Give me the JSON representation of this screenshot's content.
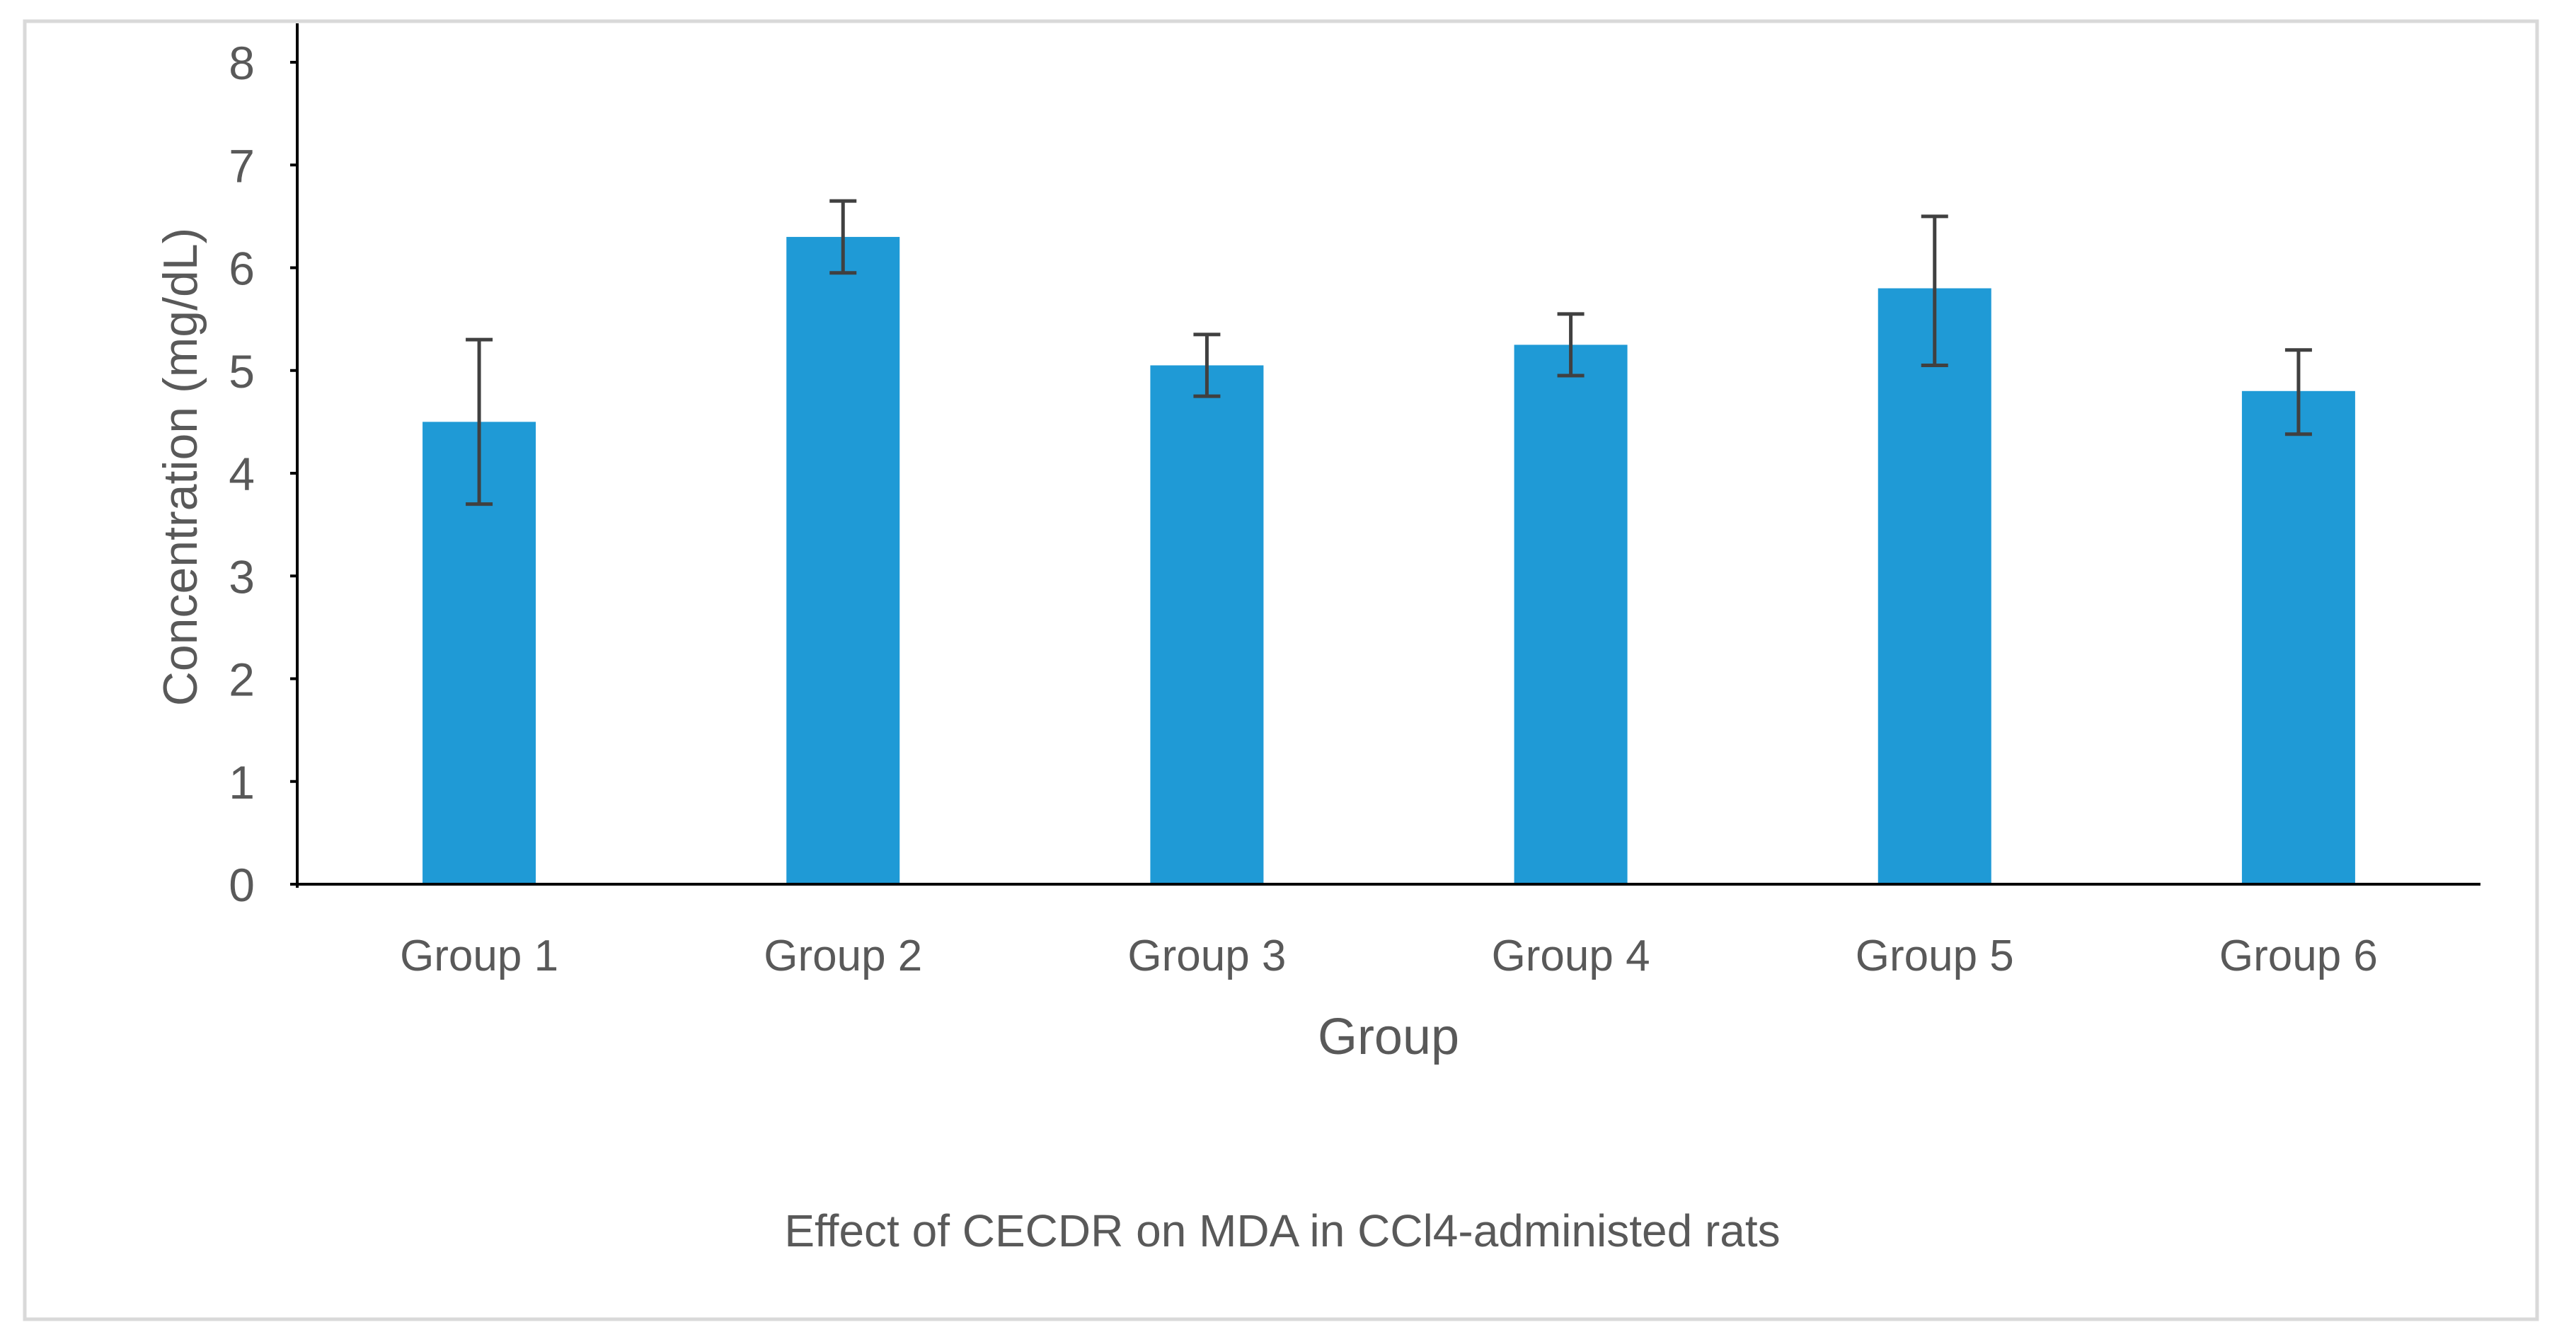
{
  "chart_data": {
    "type": "bar",
    "title": "Effect of CECDR on MDA in CCl4-administed rats",
    "xlabel": "Group",
    "ylabel": "Concentration (mg/dL)",
    "categories": [
      "Group 1",
      "Group 2",
      "Group 3",
      "Group 4",
      "Group 5",
      "Group 6"
    ],
    "values": [
      4.5,
      6.3,
      5.05,
      5.25,
      5.8,
      4.8
    ],
    "error_upper": [
      5.3,
      6.65,
      5.35,
      5.55,
      6.5,
      5.2
    ],
    "error_lower": [
      3.7,
      5.95,
      4.75,
      4.95,
      5.05,
      4.38
    ],
    "ylim": [
      0,
      8
    ],
    "yticks": [
      "0",
      "1",
      "2",
      "3",
      "4",
      "5",
      "6",
      "7",
      "8"
    ],
    "grid": false,
    "legend": "none",
    "bar_color": "#1f9ad6",
    "error_color": "#404040",
    "axis_color": "#000000",
    "frame_color": "#d9d9d9"
  }
}
